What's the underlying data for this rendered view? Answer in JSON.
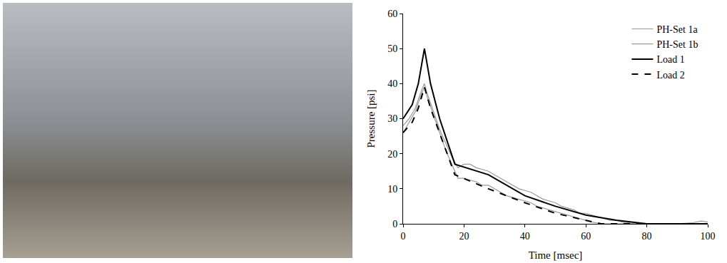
{
  "chart_data": {
    "type": "line",
    "x_label": "Time [msec]",
    "y_label": "Pressure [psi]",
    "xlim": [
      0,
      100
    ],
    "xticks": [
      0,
      20,
      40,
      60,
      80,
      100
    ],
    "ylim": [
      0,
      60
    ],
    "yticks": [
      0,
      10,
      20,
      30,
      40,
      50,
      60
    ],
    "grid": false,
    "legend": "upper right",
    "series": [
      {
        "name": "PH-Set 1a",
        "color": "#9a9a9a",
        "line_style": "solid",
        "x": [
          0,
          2,
          4,
          6,
          7,
          8,
          10,
          12,
          14,
          16,
          18,
          20,
          22,
          24,
          26,
          28,
          30,
          32,
          34,
          36,
          38,
          40,
          42,
          44,
          46,
          48,
          50,
          52,
          54,
          56,
          58,
          60,
          62,
          64,
          66,
          68,
          70,
          72,
          74,
          76,
          78,
          80,
          85,
          90,
          95,
          98,
          100
        ],
        "values": [
          28,
          30,
          33,
          38,
          40,
          37,
          32,
          27,
          23,
          19,
          16,
          17,
          17,
          16,
          15.5,
          15,
          14,
          13,
          12,
          11,
          10,
          9.5,
          9,
          8,
          7,
          6.5,
          6,
          5,
          4.5,
          4,
          3,
          3,
          2.5,
          2,
          1.5,
          1,
          1,
          0.5,
          0.3,
          0,
          0,
          0,
          0,
          0,
          0.3,
          0.8,
          0.5
        ]
      },
      {
        "name": "PH-Set 1b",
        "color": "#9a9a9a",
        "line_style": "solid",
        "x": [
          0,
          2,
          4,
          6,
          7,
          8,
          10,
          12,
          14,
          16,
          18,
          20,
          22,
          24,
          26,
          28,
          30,
          32,
          34,
          36,
          38,
          40,
          42,
          44,
          46,
          48,
          50,
          52,
          54,
          56,
          58,
          60,
          62,
          64,
          66,
          70,
          80,
          90,
          100
        ],
        "values": [
          26,
          29,
          32,
          37,
          39,
          36,
          31,
          26,
          21,
          17,
          13,
          13,
          12.5,
          12,
          11,
          11,
          10,
          9,
          8,
          7.5,
          7,
          6.5,
          6,
          5,
          4.5,
          4,
          3.5,
          3,
          2.5,
          2,
          1.5,
          1,
          0.5,
          0.2,
          0,
          0,
          0,
          0,
          0
        ]
      },
      {
        "name": "Load 1",
        "color": "#000000",
        "line_style": "solid",
        "x": [
          0,
          3,
          5,
          7,
          9,
          12,
          17,
          28,
          40,
          50,
          60,
          70,
          80,
          100
        ],
        "values": [
          30,
          34,
          40,
          50,
          40,
          30,
          17,
          14,
          8,
          5,
          2.5,
          1,
          0,
          0
        ]
      },
      {
        "name": "Load 2",
        "color": "#000000",
        "line_style": "dash",
        "x": [
          0,
          3,
          5,
          7,
          9,
          12,
          17,
          28,
          40,
          50,
          60,
          65,
          100
        ],
        "values": [
          26,
          29,
          33,
          39,
          33,
          26,
          14,
          10,
          6,
          3,
          1,
          0,
          0
        ]
      }
    ]
  }
}
